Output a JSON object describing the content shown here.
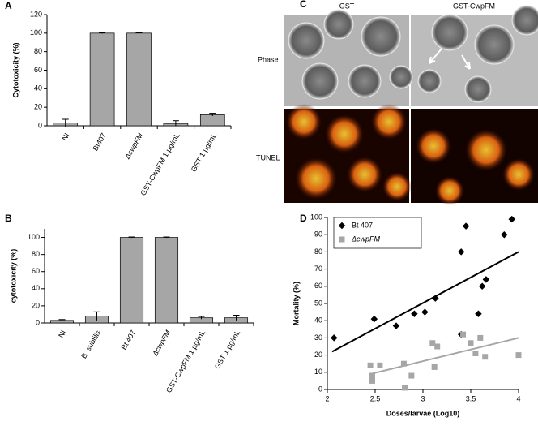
{
  "chart_data": [
    {
      "type": "bar",
      "panel_label": "A",
      "y_label": "Cytotoxicity (%)",
      "categories": [
        "NI",
        "Bt407",
        "ΔcwpFM",
        "GST-CwpFM 1 µg/mL",
        "GST 1 µg/mL"
      ],
      "values": [
        3,
        100,
        100,
        2.5,
        12
      ],
      "errors": [
        4,
        0.5,
        0.5,
        3,
        1.5
      ],
      "color": "#a6a6a6",
      "ylim": [
        0,
        120
      ],
      "yticks": [
        0,
        20,
        40,
        60,
        80,
        100,
        120
      ]
    },
    {
      "type": "bar",
      "panel_label": "B",
      "y_label": "cytotoxicity (%)",
      "categories": [
        "NI",
        "B. subtilis",
        "Bt 407",
        "ΔcwpFM",
        "GST-CwpFM 1 µg/mL",
        "GST 1 µg/mL"
      ],
      "values": [
        3,
        8,
        100,
        100,
        6,
        6
      ],
      "errors": [
        1,
        5,
        0.5,
        0.5,
        1.5,
        3
      ],
      "color": "#a6a6a6",
      "ylim": [
        0,
        110
      ],
      "yticks": [
        0,
        20,
        40,
        60,
        80,
        100
      ]
    },
    {
      "type": "scatter",
      "panel_label": "D",
      "x_label": "Doses/larvae (Log10)",
      "y_label": "Mortality (%)",
      "xlim": [
        2,
        4
      ],
      "xticks": [
        2,
        2.5,
        3,
        3.5,
        4
      ],
      "ylim": [
        0,
        100
      ],
      "yticks": [
        0,
        10,
        20,
        30,
        40,
        50,
        60,
        70,
        80,
        90,
        100
      ],
      "legend": "upper left",
      "series": [
        {
          "name": "Bt 407",
          "color": "#000000",
          "marker": "diamond",
          "x": [
            2.07,
            2.49,
            2.72,
            2.91,
            3.02,
            3.13,
            3.4,
            3.45,
            3.4,
            3.58,
            3.62,
            3.66,
            3.85,
            3.93
          ],
          "values": [
            30,
            41,
            37,
            44,
            45,
            53,
            80,
            95,
            32,
            44,
            60,
            64,
            90,
            99
          ],
          "trend_x": [
            2.05,
            4
          ],
          "trend_values": [
            22,
            80
          ]
        },
        {
          "name": "ΔcwpFM",
          "color": "#a6a6a6",
          "marker": "square",
          "x": [
            2.45,
            2.47,
            2.47,
            2.47,
            2.55,
            2.8,
            2.81,
            2.88,
            3.1,
            3.12,
            3.15,
            3.42,
            3.5,
            3.55,
            3.6,
            3.65,
            4.0
          ],
          "values": [
            14,
            8,
            6,
            5,
            14,
            15,
            1,
            8,
            27,
            13,
            25,
            32,
            27,
            21,
            30,
            19,
            20
          ],
          "trend_x": [
            2.45,
            4
          ],
          "trend_values": [
            9,
            30
          ]
        }
      ]
    }
  ],
  "image_panel": {
    "label": "C",
    "columns": [
      "GST",
      "GST-CwpFM"
    ],
    "rows": [
      "Phase",
      "TUNEL"
    ]
  }
}
